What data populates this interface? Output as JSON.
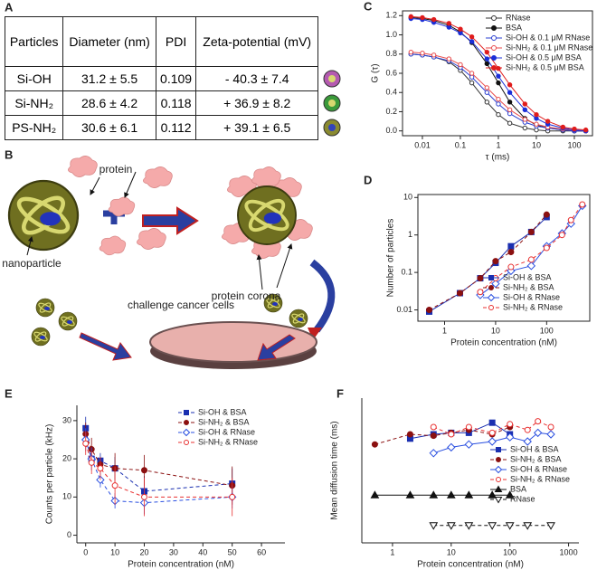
{
  "panel_labels": [
    "A",
    "B",
    "C",
    "D",
    "E",
    "F"
  ],
  "table": {
    "header": [
      "Particles",
      "Diameter (nm)",
      "PDI",
      "Zeta-potential (mV)"
    ],
    "rows": [
      [
        "Si-OH",
        "31.2 ± 5.5",
        "0.109",
        "- 40.3 ± 7.4"
      ],
      [
        "Si-NH₂",
        "28.6 ± 4.2",
        "0.118",
        "+ 36.9 ± 8.2"
      ],
      [
        "PS-NH₂",
        "30.6 ± 6.1",
        "0.112",
        "+ 39.1 ± 6.5"
      ]
    ]
  },
  "diagram": {
    "labels": {
      "protein": "protein",
      "nanoparticle": "nanoparticle",
      "corona": "protein corona",
      "cells": "challenge cancer cells"
    }
  },
  "chart_data": [
    {
      "type": "line",
      "xscale": "log",
      "x": [
        0.005,
        0.01,
        0.02,
        0.05,
        0.1,
        0.2,
        0.5,
        1,
        2,
        5,
        10,
        20,
        50,
        100,
        200
      ],
      "xlim": [
        0.003,
        300
      ],
      "xticks": [
        0.01,
        0.1,
        1,
        10,
        100
      ],
      "ylim": [
        -0.05,
        1.25
      ],
      "yticks": [
        {
          "value": 0,
          "label": "0.0"
        },
        {
          "value": 0.2,
          "label": "0.2"
        },
        {
          "value": 0.4,
          "label": "0.4"
        },
        {
          "value": 0.6,
          "label": "0.6"
        },
        {
          "value": 0.8,
          "label": "0.8"
        },
        {
          "value": 1,
          "label": "1.0"
        },
        {
          "value": 1.2,
          "label": "1.2"
        }
      ],
      "xlabel": "τ (ms)",
      "ylabel": "G (τ)",
      "legend": "upper right",
      "frame": true,
      "series": [
        {
          "name": "RNase",
          "color": "#333333",
          "marker": "circle",
          "filled": false,
          "line": "solid",
          "values": [
            0.8,
            0.79,
            0.77,
            0.72,
            0.63,
            0.5,
            0.3,
            0.17,
            0.08,
            0.03,
            0.01,
            0,
            0,
            0,
            0
          ]
        },
        {
          "name": "BSA",
          "color": "#111111",
          "marker": "circle",
          "filled": true,
          "line": "solid",
          "values": [
            1.18,
            1.17,
            1.15,
            1.1,
            1.03,
            0.92,
            0.7,
            0.5,
            0.3,
            0.13,
            0.06,
            0.03,
            0.01,
            0,
            0
          ]
        },
        {
          "name": "Si-OH & 0.1 μM RNase",
          "color": "#2a3fd0",
          "marker": "circle",
          "filled": false,
          "line": "solid",
          "values": [
            0.8,
            0.79,
            0.77,
            0.73,
            0.66,
            0.56,
            0.4,
            0.28,
            0.18,
            0.09,
            0.05,
            0.03,
            0.01,
            0,
            0
          ]
        },
        {
          "name": "Si-NH₂ & 0.1 μM RNase",
          "color": "#e84a4a",
          "marker": "circle",
          "filled": false,
          "line": "solid",
          "values": [
            0.82,
            0.81,
            0.79,
            0.75,
            0.69,
            0.6,
            0.45,
            0.33,
            0.22,
            0.12,
            0.07,
            0.04,
            0.02,
            0.01,
            0
          ]
        },
        {
          "name": "Si-OH & 0.5 μM BSA",
          "color": "#1a2fd8",
          "marker": "circle",
          "filled": true,
          "line": "solid",
          "values": [
            1.17,
            1.16,
            1.13,
            1.08,
            1.02,
            0.93,
            0.75,
            0.57,
            0.4,
            0.22,
            0.13,
            0.07,
            0.03,
            0.01,
            0
          ]
        },
        {
          "name": "Si-NH₂ & 0.5 μM BSA",
          "color": "#e01c1c",
          "marker": "circle",
          "filled": true,
          "line": "solid",
          "values": [
            1.19,
            1.18,
            1.16,
            1.12,
            1.06,
            0.98,
            0.82,
            0.65,
            0.48,
            0.28,
            0.17,
            0.1,
            0.04,
            0.02,
            0.01
          ]
        }
      ]
    },
    {
      "type": "line",
      "xscale": "log",
      "yscale": "log",
      "xlim": [
        0.3,
        700
      ],
      "xticks": [
        1,
        10,
        100
      ],
      "ylim": [
        0.005,
        12
      ],
      "yticks": [
        0.01,
        0.1,
        1,
        10
      ],
      "xlabel": "Protein concentration (nM)",
      "ylabel": "Number of particles",
      "legend": "lower right",
      "frame": true,
      "series": [
        {
          "name": "Si-OH & BSA",
          "color": "#1a2fb0",
          "marker": "square",
          "filled": true,
          "line": "solid",
          "x": [
            0.5,
            2,
            5,
            10,
            20,
            50,
            100
          ],
          "values": [
            0.009,
            0.028,
            0.07,
            0.18,
            0.5,
            1.2,
            3
          ]
        },
        {
          "name": "Si-NH₂ & BSA",
          "color": "#8b1010",
          "marker": "circle",
          "filled": true,
          "line": "dashed",
          "x": [
            0.5,
            2,
            5,
            10,
            20,
            50,
            100
          ],
          "values": [
            0.01,
            0.028,
            0.07,
            0.2,
            0.35,
            1.2,
            3.5
          ]
        },
        {
          "name": "Si-OH & RNase",
          "color": "#2a4fe0",
          "marker": "diamond",
          "filled": false,
          "line": "solid",
          "x": [
            5,
            10,
            20,
            50,
            100,
            200,
            300,
            500
          ],
          "values": [
            0.025,
            0.05,
            0.11,
            0.15,
            0.5,
            1.1,
            2,
            6
          ]
        },
        {
          "name": "Si-NH₂ & RNase",
          "color": "#e83030",
          "marker": "circle",
          "filled": false,
          "line": "dashed",
          "x": [
            5,
            10,
            20,
            50,
            100,
            200,
            300,
            500
          ],
          "values": [
            0.03,
            0.07,
            0.14,
            0.22,
            0.45,
            1,
            2.5,
            6.5
          ]
        }
      ]
    },
    {
      "type": "line",
      "x": [
        0,
        2,
        5,
        10,
        20,
        50
      ],
      "xlim": [
        -3,
        68
      ],
      "xticks": [
        0,
        10,
        20,
        30,
        40,
        50,
        60
      ],
      "ylim": [
        -2,
        34
      ],
      "yticks": [
        0,
        10,
        20,
        30
      ],
      "xlabel": "Protein concentration (nM)",
      "ylabel": "Counts per particle (kHz)",
      "legend": "upper right",
      "frame": false,
      "series": [
        {
          "name": "Si-OH & BSA",
          "color": "#1a2fb0",
          "marker": "square",
          "filled": true,
          "line": "dashed",
          "values": [
            28,
            20,
            19.5,
            17.5,
            11.5,
            13.5
          ],
          "errors": [
            3,
            2,
            2,
            3,
            4,
            4
          ]
        },
        {
          "name": "Si-NH₂ & BSA",
          "color": "#8b1010",
          "marker": "circle",
          "filled": true,
          "line": "dashed",
          "values": [
            26.5,
            22.5,
            18.5,
            17.5,
            17,
            13
          ],
          "errors": [
            3,
            3,
            2,
            4,
            4,
            5
          ]
        },
        {
          "name": "Si-OH & RNase",
          "color": "#2a4fe0",
          "marker": "diamond",
          "filled": false,
          "line": "dashed",
          "values": [
            25,
            20,
            14.5,
            9,
            8.5,
            10
          ],
          "errors": [
            3,
            3,
            2,
            2,
            3,
            3
          ]
        },
        {
          "name": "Si-NH₂ & RNase",
          "color": "#e83030",
          "marker": "circle",
          "filled": false,
          "line": "dashed",
          "values": [
            24,
            19,
            17.5,
            13,
            10,
            10
          ],
          "errors": [
            3,
            3,
            3,
            5,
            5,
            5
          ]
        }
      ]
    },
    {
      "type": "line",
      "xscale": "log",
      "xlim": [
        0.3,
        1500
      ],
      "xticks": [
        1,
        10,
        100,
        1000
      ],
      "ylim": [
        0,
        10
      ],
      "xlabel": "Protein concentration (nM)",
      "ylabel": "Mean diffusion time (ms)",
      "legend": "right",
      "frame": false,
      "series": [
        {
          "name": "Si-OH & BSA",
          "color": "#1a2fb0",
          "marker": "square",
          "filled": true,
          "line": "solid",
          "x": [
            2,
            5,
            10,
            20,
            50,
            100
          ],
          "values": [
            7.2,
            7.5,
            7.6,
            7.6,
            8.3,
            7.5
          ]
        },
        {
          "name": "Si-NH₂ & BSA",
          "color": "#8b1010",
          "marker": "circle",
          "filled": true,
          "line": "dashed",
          "x": [
            0.5,
            2,
            5,
            10,
            20,
            50,
            100
          ],
          "values": [
            6.8,
            7.5,
            7.4,
            7.6,
            7.8,
            7.5,
            8
          ]
        },
        {
          "name": "Si-OH & RNase",
          "color": "#2a4fe0",
          "marker": "diamond",
          "filled": false,
          "line": "solid",
          "x": [
            5,
            10,
            20,
            50,
            100,
            200,
            300,
            500
          ],
          "values": [
            6.2,
            6.6,
            6.8,
            7,
            7.3,
            7,
            7.6,
            7.5
          ]
        },
        {
          "name": "Si-NH₂ & RNase",
          "color": "#e83030",
          "marker": "circle",
          "filled": false,
          "line": "dashed",
          "x": [
            5,
            10,
            20,
            50,
            100,
            200,
            300,
            500
          ],
          "values": [
            8,
            7.5,
            8,
            7.6,
            8.2,
            7.8,
            8.4,
            8
          ]
        },
        {
          "name": "BSA",
          "color": "#111111",
          "marker": "triangle-up",
          "filled": true,
          "line": "solid",
          "x": [
            0.5,
            2,
            5,
            10,
            20,
            50,
            100
          ],
          "values": [
            3.3,
            3.3,
            3.3,
            3.3,
            3.3,
            3.3,
            3.3
          ]
        },
        {
          "name": "RNase",
          "color": "#111111",
          "marker": "triangle-down",
          "filled": false,
          "line": "dashed",
          "x": [
            5,
            10,
            20,
            50,
            100,
            200,
            500
          ],
          "values": [
            1.2,
            1.2,
            1.2,
            1.2,
            1.2,
            1.2,
            1.2
          ]
        }
      ]
    }
  ]
}
